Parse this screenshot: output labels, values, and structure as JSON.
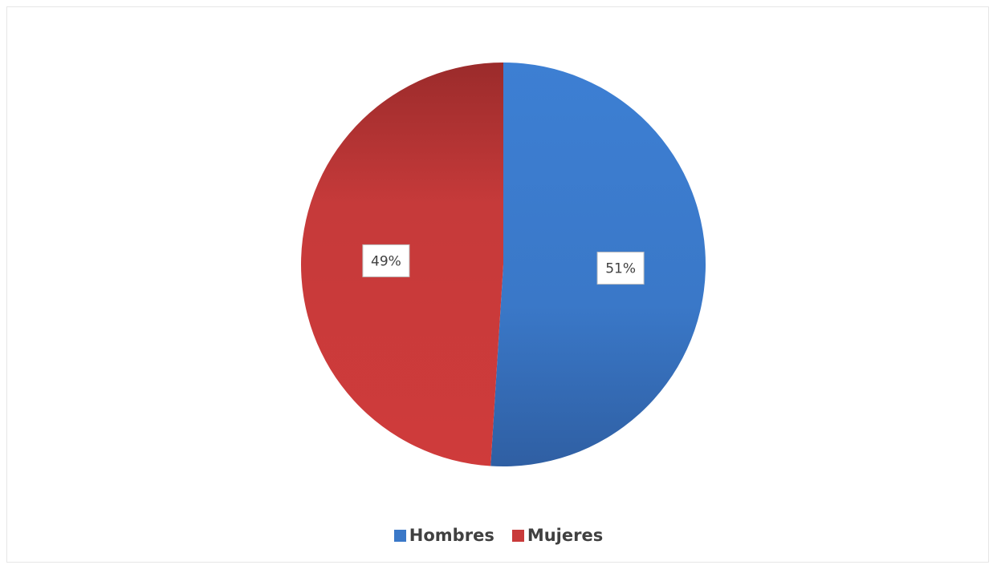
{
  "chart_data": {
    "type": "pie",
    "title": "",
    "categories": [
      "Hombres",
      "Mujeres"
    ],
    "values": [
      51,
      49
    ],
    "data_labels": [
      "51%",
      "49%"
    ],
    "colors": [
      "#3a78c8",
      "#c93a3a"
    ],
    "legend": "bottom",
    "start_angle": "12 o'clock, clockwise"
  }
}
